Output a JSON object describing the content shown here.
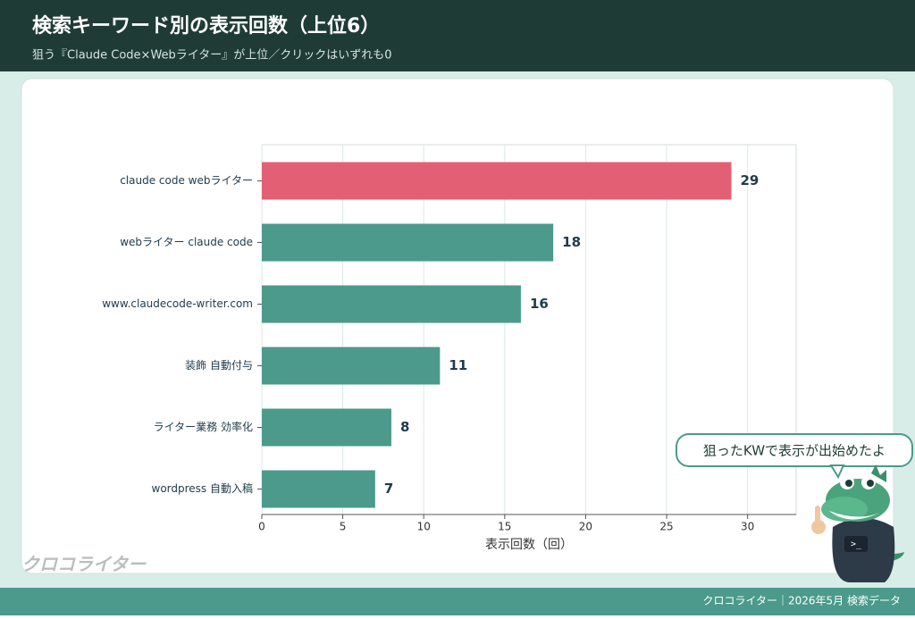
{
  "chart_data": {
    "type": "barh",
    "title": "検索キーワード別の表示回数（上位6）",
    "subtitle": "狙う『Claude Code×Webライター』が上位／クリックはいずれも0",
    "categories": [
      "claude code webライター",
      "webライター claude code",
      "www.claudecode-writer.com",
      "装飾 自動付与",
      "ライター業務 効率化",
      "wordpress 自動入稿"
    ],
    "values": [
      29,
      18,
      16,
      11,
      8,
      7
    ],
    "colors": [
      "#e35f74",
      "#4b9a8b",
      "#4b9a8b",
      "#4b9a8b",
      "#4b9a8b",
      "#4b9a8b"
    ],
    "xlabel": "表示回数（回）",
    "xlim": [
      0,
      33
    ],
    "xticks": [
      0,
      5,
      10,
      15,
      20,
      25,
      30
    ],
    "grid": true,
    "annotation": "狙ったKWで表示が出始めたよ",
    "logo": "クロコライター",
    "footer": "クロコライター｜2026年5月 検索データ"
  }
}
